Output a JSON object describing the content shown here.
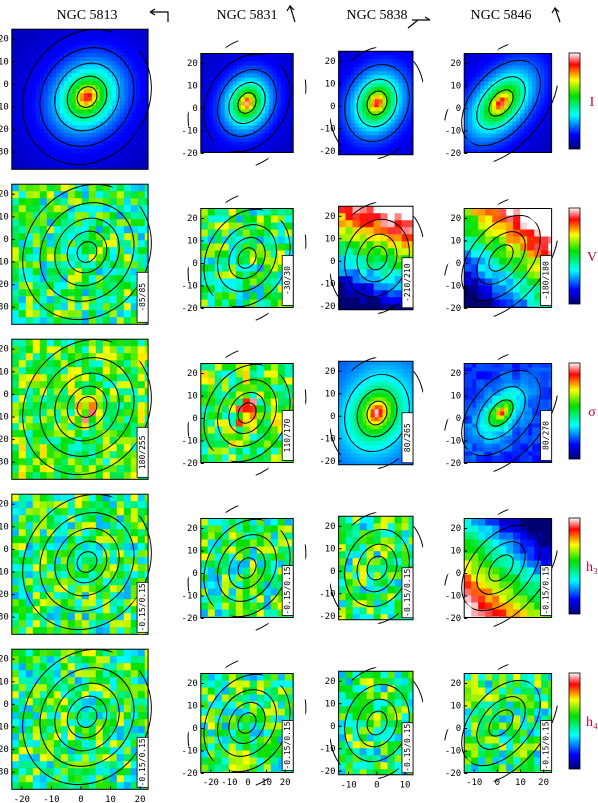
{
  "columns": [
    {
      "name": "NGC 5813",
      "yticks": [
        "20",
        "10",
        "0",
        "-10",
        "-20",
        "-30"
      ],
      "xticks": [
        "-20",
        "-10",
        "0",
        "10",
        "20"
      ],
      "ranges": [
        "-85/85",
        "180/255",
        "-0.15/0.15",
        "-0.15/0.15"
      ]
    },
    {
      "name": "NGC 5831",
      "yticks": [
        "20",
        "10",
        "0",
        "-10",
        "-20"
      ],
      "xticks": [
        "-20",
        "-10",
        "0",
        "10",
        "20"
      ],
      "ranges": [
        "-30/30",
        "110/170",
        "-0.15/0.15",
        "-0.15/0.15"
      ]
    },
    {
      "name": "NGC 5838",
      "yticks": [
        "20",
        "10",
        "0",
        "-10",
        "-20"
      ],
      "xticks": [
        "-10",
        "0",
        "10"
      ],
      "ranges": [
        "-210/210",
        "80/265",
        "-0.15/0.15",
        "-0.15/0.15"
      ]
    },
    {
      "name": "NGC 5846",
      "yticks": [
        "20",
        "10",
        "0",
        "-10",
        "-20"
      ],
      "xticks": [
        "-10",
        "0",
        "10",
        "20"
      ],
      "ranges": [
        "-180/180",
        "80/270",
        "-0.15/0.15",
        "-0.15/0.15"
      ]
    }
  ],
  "rows": [
    {
      "label": "I"
    },
    {
      "label": "V"
    },
    {
      "label": "σ"
    },
    {
      "label": "h₃"
    },
    {
      "label": "h₄"
    }
  ]
}
